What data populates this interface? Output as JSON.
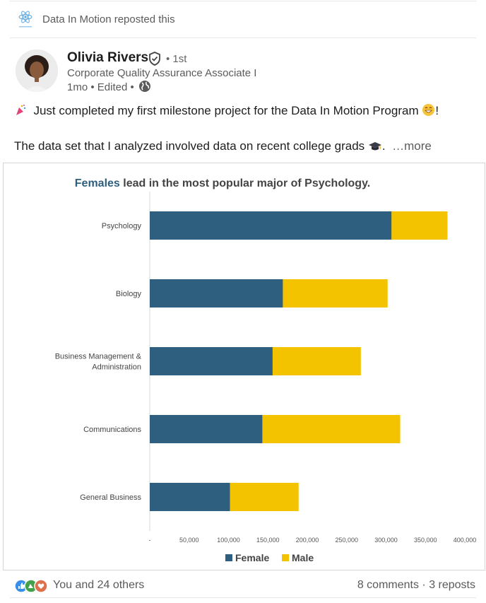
{
  "repost": {
    "text": "Data In Motion reposted this"
  },
  "author": {
    "name": "Olivia Rivers",
    "degree": "• 1st",
    "headline": "Corporate Quality Assurance Associate I",
    "meta": "1mo • Edited •"
  },
  "post": {
    "line1": "Just completed my first milestone project for the Data In Motion Program",
    "line1_end": "!",
    "line2": "The data set that I analyzed involved data on recent college grads",
    "line2_end": ".",
    "more": "…more"
  },
  "chart_data": {
    "type": "bar",
    "stacked": true,
    "orientation": "horizontal",
    "title_prefix": "Females",
    "title_rest": " lead in the most popular major of Psychology.",
    "categories": [
      "Psychology",
      "Biology",
      "Business Management & Administration",
      "Communications",
      "General Business"
    ],
    "category_lines": [
      [
        "Psychology"
      ],
      [
        "Biology"
      ],
      [
        "Business Management &",
        "Administration"
      ],
      [
        "Communications"
      ],
      [
        "General Business"
      ]
    ],
    "series": [
      {
        "name": "Female",
        "color": "#2f5f7f",
        "values": [
          307000,
          169000,
          156000,
          143000,
          102000
        ]
      },
      {
        "name": "Male",
        "color": "#f3c300",
        "values": [
          71000,
          133000,
          112000,
          175000,
          87000
        ]
      }
    ],
    "xlim": [
      0,
      400000
    ],
    "x_ticks": [
      0,
      50000,
      100000,
      150000,
      200000,
      250000,
      300000,
      350000,
      400000
    ],
    "x_tick_labels": [
      "-",
      "50,000",
      "100,000",
      "150,000",
      "200,000",
      "250,000",
      "300,000",
      "350,000",
      "400,000"
    ],
    "grid": false,
    "legend_position": "bottom"
  },
  "social": {
    "reactions_text": "You and 24 others",
    "comments_reposts": "8 comments · 3 reposts"
  },
  "colors": {
    "title_accent": "#2f5f7f"
  }
}
